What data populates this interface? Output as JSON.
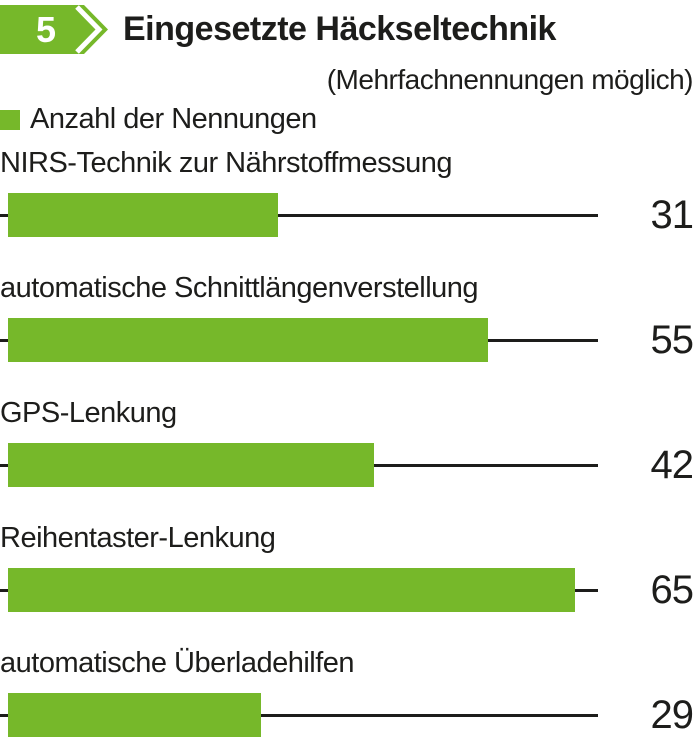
{
  "header": {
    "badge_number": "5",
    "title": "Eingesetzte Häckseltechnik",
    "subtitle": "(Mehrfachnennungen möglich)"
  },
  "legend": {
    "label": "Anzahl der Nennungen",
    "swatch_color": "#76b82a"
  },
  "chart_data": {
    "type": "bar",
    "orientation": "horizontal",
    "title": "Eingesetzte Häckseltechnik",
    "note": "(Mehrfachnennungen möglich)",
    "legend_entries": [
      "Anzahl der Nennungen"
    ],
    "categories": [
      "NIRS-Technik zur Nährstoffmessung",
      "automatische Schnittlängenverstellung",
      "GPS-Lenkung",
      "Reihentaster-Lenkung",
      "automatische Überladehilfen"
    ],
    "values": [
      31,
      55,
      42,
      65,
      29
    ],
    "value_labels": [
      "31",
      "55",
      "42",
      "65",
      "29"
    ],
    "xlabel": "",
    "ylabel": "",
    "xlim": [
      0,
      68
    ],
    "grid": false,
    "legend_position": "top-left",
    "bar_color": "#76b82a",
    "axis_line_color": "#1d1d1b"
  },
  "colors": {
    "accent_green": "#76b82a",
    "text": "#1d1d1b",
    "line": "#1d1d1b"
  }
}
